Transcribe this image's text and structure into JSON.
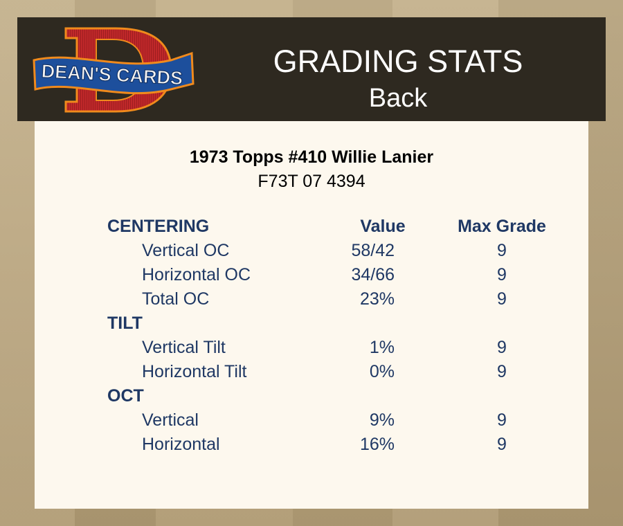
{
  "header": {
    "logo_text": "DEAN'S CARDS",
    "title": "GRADING STATS",
    "subtitle": "Back"
  },
  "card": {
    "name": "1973 Topps #410 Willie Lanier",
    "cert": "F73T 07 4394"
  },
  "columns": {
    "value": "Value",
    "max_grade": "Max Grade"
  },
  "sections": [
    {
      "label": "CENTERING",
      "rows": [
        {
          "label": "Vertical OC",
          "value": "58/42",
          "max": "9"
        },
        {
          "label": "Horizontal OC",
          "value": "34/66",
          "max": "9"
        },
        {
          "label": "Total OC",
          "value": "23%",
          "max": "9"
        }
      ]
    },
    {
      "label": "TILT",
      "rows": [
        {
          "label": "Vertical Tilt",
          "value": "1%",
          "max": "9"
        },
        {
          "label": "Horizontal Tilt",
          "value": "0%",
          "max": "9"
        }
      ]
    },
    {
      "label": "OCT",
      "rows": [
        {
          "label": "Vertical",
          "value": "9%",
          "max": "9"
        },
        {
          "label": "Horizontal",
          "value": "16%",
          "max": "9"
        }
      ]
    }
  ],
  "colors": {
    "text": "#1f3864",
    "header_bg": "#2e2920",
    "panel_bg": "#fdf8ee",
    "logo_red": "#c0282a",
    "logo_blue": "#1d4f9c",
    "logo_orange": "#f08a1c"
  }
}
